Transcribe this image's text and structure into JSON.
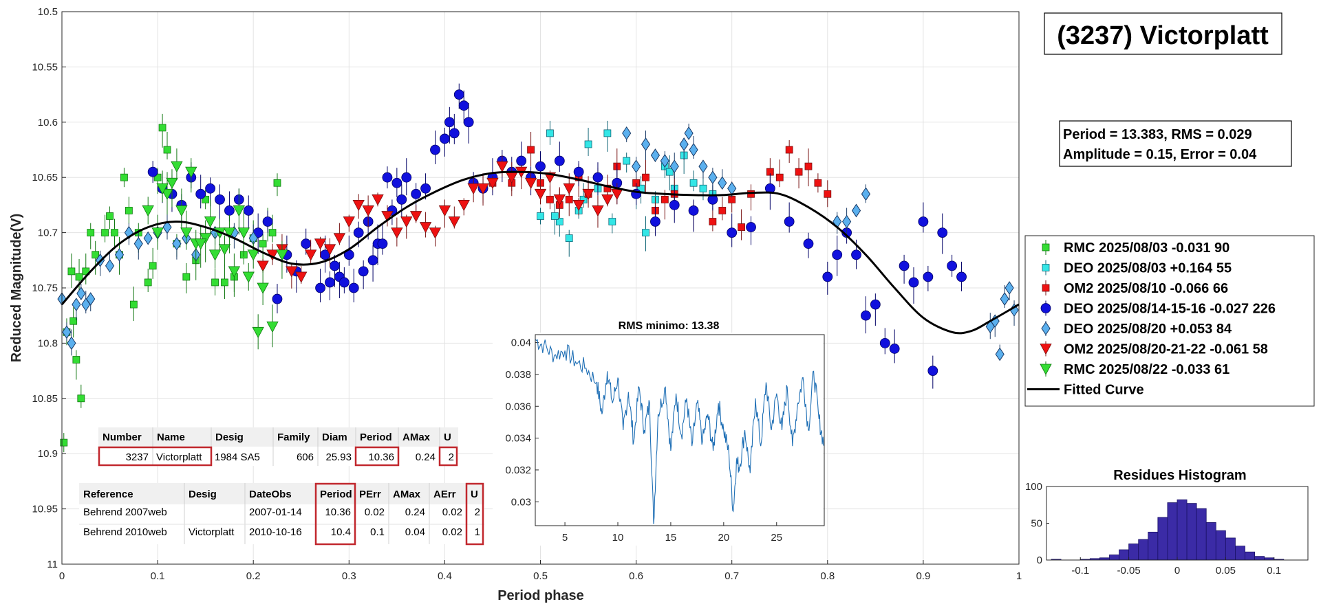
{
  "chart_data": [
    {
      "type": "scatter",
      "xlabel": "Period phase",
      "ylabel": "Reduced Magnitude(V)",
      "xlim": [
        0,
        1
      ],
      "ylim": [
        10.5,
        11
      ],
      "y_reversed": true,
      "grid": true,
      "xticks": [
        "0",
        "0.1",
        "0.2",
        "0.3",
        "0.4",
        "0.5",
        "0.6",
        "0.7",
        "0.8",
        "0.9",
        "1"
      ],
      "yticks": [
        "10.5",
        "10.55",
        "10.6",
        "10.65",
        "10.7",
        "10.75",
        "10.8",
        "10.85",
        "10.9",
        "10.95",
        "11"
      ],
      "title_box": "(3237) Victorplatt",
      "stats_line1": "Period =  13.383, RMS = 0.029",
      "stats_line2": "Amplitude = 0.15, Error = 0.04",
      "legend": [
        {
          "label": "RMC 2025/08/03   -0.031    90",
          "color": "#33dd33",
          "marker": "square"
        },
        {
          "label": "DEO 2025/08/03   +0.164    55",
          "color": "#33e6e6",
          "marker": "square"
        },
        {
          "label": "OM2 2025/08/10   -0.066    66",
          "color": "#ee1111",
          "marker": "square"
        },
        {
          "label": "DEO 2025/08/14-15-16 -0.027 226",
          "color": "#1111dd",
          "marker": "circle"
        },
        {
          "label": "DEO 2025/08/20   +0.053    84",
          "color": "#5bb0ee",
          "marker": "diamond"
        },
        {
          "label": "OM2 2025/08/20-21-22 -0.061  58",
          "color": "#ee1111",
          "marker": "triangle-down"
        },
        {
          "label": "RMC 2025/08/22   -0.033    61",
          "color": "#33dd33",
          "marker": "triangle-down"
        },
        {
          "label": "Fitted Curve",
          "color": "#000000",
          "marker": "line"
        }
      ],
      "fitted_curve": {
        "x": [
          0,
          0.03,
          0.06,
          0.09,
          0.12,
          0.15,
          0.18,
          0.21,
          0.24,
          0.27,
          0.3,
          0.33,
          0.36,
          0.39,
          0.42,
          0.45,
          0.48,
          0.51,
          0.54,
          0.57,
          0.6,
          0.63,
          0.66,
          0.69,
          0.72,
          0.75,
          0.78,
          0.81,
          0.84,
          0.87,
          0.9,
          0.93,
          0.95,
          0.97,
          1.0
        ],
        "y": [
          10.765,
          10.735,
          10.71,
          10.695,
          10.69,
          10.695,
          10.705,
          10.718,
          10.728,
          10.727,
          10.715,
          10.695,
          10.677,
          10.663,
          10.652,
          10.646,
          10.645,
          10.647,
          10.652,
          10.658,
          10.663,
          10.665,
          10.666,
          10.666,
          10.664,
          10.665,
          10.677,
          10.695,
          10.72,
          10.75,
          10.777,
          10.79,
          10.789,
          10.78,
          10.765
        ]
      },
      "series": [
        {
          "name": "RMC 2025/08/03",
          "marker": "square",
          "color": "#33dd33",
          "edge": "#117711",
          "x": [
            0.002,
            0.005,
            0.01,
            0.015,
            0.02,
            0.025,
            0.03,
            0.035,
            0.045,
            0.05,
            0.055,
            0.06,
            0.065,
            0.07,
            0.075,
            0.08,
            0.09,
            0.095,
            0.1,
            0.105,
            0.11,
            0.12,
            0.13,
            0.14,
            0.15,
            0.16,
            0.17,
            0.18,
            0.19,
            0.2,
            0.21,
            0.215,
            0.22,
            0.225,
            0.012,
            0.018
          ],
          "y": [
            10.89,
            10.79,
            10.735,
            10.815,
            10.85,
            10.735,
            10.7,
            10.72,
            10.7,
            10.685,
            10.7,
            10.72,
            10.65,
            10.68,
            10.765,
            10.7,
            10.745,
            10.73,
            10.65,
            10.605,
            10.625,
            10.71,
            10.74,
            10.725,
            10.67,
            10.745,
            10.745,
            10.74,
            10.72,
            10.705,
            10.71,
            10.69,
            10.7,
            10.655,
            10.78,
            10.74
          ]
        },
        {
          "name": "DEO 2025/08/03",
          "marker": "square",
          "color": "#33e6e6",
          "edge": "#116677",
          "x": [
            0.5,
            0.51,
            0.52,
            0.53,
            0.54,
            0.55,
            0.56,
            0.57,
            0.58,
            0.59,
            0.6,
            0.61,
            0.62,
            0.63,
            0.64,
            0.65,
            0.66,
            0.67,
            0.68,
            0.515,
            0.545,
            0.575,
            0.605,
            0.635
          ],
          "y": [
            10.685,
            10.61,
            10.69,
            10.705,
            10.68,
            10.62,
            10.66,
            10.61,
            10.655,
            10.635,
            10.665,
            10.7,
            10.67,
            10.64,
            10.66,
            10.63,
            10.655,
            10.66,
            10.665,
            10.685,
            10.67,
            10.69,
            10.66,
            10.645
          ]
        },
        {
          "name": "OM2 2025/08/10",
          "marker": "square",
          "color": "#ee1111",
          "edge": "#771111",
          "x": [
            0.45,
            0.47,
            0.49,
            0.5,
            0.51,
            0.52,
            0.53,
            0.54,
            0.55,
            0.56,
            0.57,
            0.58,
            0.6,
            0.62,
            0.64,
            0.66,
            0.68,
            0.7,
            0.72,
            0.74,
            0.75,
            0.76,
            0.77,
            0.78,
            0.79,
            0.8,
            0.61,
            0.63,
            0.69,
            0.71
          ],
          "y": [
            10.655,
            10.655,
            10.625,
            10.655,
            10.67,
            10.675,
            10.67,
            10.65,
            10.665,
            10.65,
            10.66,
            10.64,
            10.655,
            10.68,
            10.665,
            10.68,
            10.69,
            10.67,
            10.665,
            10.645,
            10.65,
            10.625,
            10.645,
            10.64,
            10.655,
            10.665,
            10.65,
            10.67,
            10.68,
            10.695
          ]
        },
        {
          "name": "DEO 2025/08/14-15-16",
          "marker": "circle",
          "color": "#1111dd",
          "edge": "#000066",
          "x": [
            0.095,
            0.105,
            0.115,
            0.125,
            0.135,
            0.145,
            0.155,
            0.165,
            0.175,
            0.185,
            0.195,
            0.205,
            0.215,
            0.225,
            0.235,
            0.245,
            0.255,
            0.27,
            0.28,
            0.29,
            0.3,
            0.31,
            0.32,
            0.33,
            0.34,
            0.35,
            0.36,
            0.37,
            0.38,
            0.39,
            0.4,
            0.405,
            0.41,
            0.415,
            0.42,
            0.425,
            0.43,
            0.44,
            0.45,
            0.46,
            0.47,
            0.48,
            0.49,
            0.5,
            0.52,
            0.54,
            0.56,
            0.58,
            0.6,
            0.62,
            0.64,
            0.66,
            0.68,
            0.7,
            0.72,
            0.74,
            0.76,
            0.78,
            0.8,
            0.81,
            0.82,
            0.83,
            0.84,
            0.85,
            0.86,
            0.87,
            0.88,
            0.89,
            0.9,
            0.905,
            0.91,
            0.92,
            0.93,
            0.94,
            0.275,
            0.285,
            0.295,
            0.305,
            0.315,
            0.325,
            0.335,
            0.345,
            0.355
          ],
          "y": [
            10.645,
            10.66,
            10.665,
            10.675,
            10.65,
            10.665,
            10.66,
            10.67,
            10.68,
            10.67,
            10.68,
            10.7,
            10.69,
            10.76,
            10.72,
            10.735,
            10.71,
            10.75,
            10.745,
            10.74,
            10.72,
            10.7,
            10.69,
            10.71,
            10.65,
            10.655,
            10.65,
            10.665,
            10.66,
            10.625,
            10.615,
            10.6,
            10.61,
            10.575,
            10.585,
            10.6,
            10.655,
            10.66,
            10.65,
            10.635,
            10.645,
            10.635,
            10.65,
            10.64,
            10.635,
            10.645,
            10.65,
            10.655,
            10.665,
            10.69,
            10.675,
            10.68,
            10.67,
            10.7,
            10.695,
            10.66,
            10.69,
            10.71,
            10.74,
            10.72,
            10.7,
            10.72,
            10.775,
            10.765,
            10.8,
            10.805,
            10.73,
            10.745,
            10.69,
            10.74,
            10.825,
            10.7,
            10.73,
            10.74,
            10.72,
            10.73,
            10.745,
            10.75,
            10.735,
            10.725,
            10.71,
            10.68,
            10.67
          ]
        },
        {
          "name": "DEO 2025/08/20",
          "marker": "diamond",
          "color": "#5bb0ee",
          "edge": "#1a3a66",
          "x": [
            0.0,
            0.005,
            0.01,
            0.015,
            0.02,
            0.025,
            0.03,
            0.04,
            0.05,
            0.06,
            0.07,
            0.08,
            0.09,
            0.1,
            0.11,
            0.12,
            0.13,
            0.14,
            0.16,
            0.18,
            0.2,
            0.59,
            0.6,
            0.61,
            0.62,
            0.63,
            0.64,
            0.65,
            0.655,
            0.66,
            0.67,
            0.68,
            0.69,
            0.7,
            0.81,
            0.82,
            0.83,
            0.84,
            0.97,
            0.975,
            0.98,
            0.985,
            0.99,
            0.995
          ],
          "y": [
            10.76,
            10.79,
            10.8,
            10.765,
            10.755,
            10.765,
            10.76,
            10.725,
            10.73,
            10.72,
            10.7,
            10.71,
            10.705,
            10.7,
            10.695,
            10.71,
            10.705,
            10.72,
            10.7,
            10.7,
            10.705,
            10.61,
            10.64,
            10.62,
            10.63,
            10.635,
            10.64,
            10.62,
            10.61,
            10.625,
            10.64,
            10.65,
            10.655,
            10.66,
            10.69,
            10.69,
            10.68,
            10.665,
            10.785,
            10.78,
            10.81,
            10.76,
            10.75,
            10.77
          ]
        },
        {
          "name": "OM2 2025/08/20-21-22",
          "marker": "triangle-down",
          "color": "#ee1111",
          "edge": "#771111",
          "x": [
            0.21,
            0.22,
            0.23,
            0.24,
            0.25,
            0.26,
            0.27,
            0.28,
            0.29,
            0.3,
            0.31,
            0.32,
            0.33,
            0.34,
            0.35,
            0.36,
            0.37,
            0.38,
            0.39,
            0.4,
            0.41,
            0.42,
            0.43,
            0.44,
            0.45,
            0.46,
            0.47,
            0.48,
            0.49,
            0.5,
            0.51,
            0.52,
            0.53,
            0.54,
            0.55,
            0.56,
            0.57,
            0.58
          ],
          "y": [
            10.73,
            10.72,
            10.715,
            10.735,
            10.74,
            10.72,
            10.71,
            10.715,
            10.705,
            10.69,
            10.675,
            10.68,
            10.67,
            10.685,
            10.7,
            10.69,
            10.685,
            10.695,
            10.7,
            10.68,
            10.69,
            10.675,
            10.66,
            10.66,
            10.655,
            10.64,
            10.65,
            10.645,
            10.655,
            10.665,
            10.65,
            10.67,
            10.66,
            10.675,
            10.665,
            10.68,
            10.67,
            10.665
          ]
        },
        {
          "name": "RMC 2025/08/22",
          "marker": "triangle-down",
          "color": "#33dd33",
          "edge": "#117711",
          "x": [
            0.09,
            0.1,
            0.11,
            0.115,
            0.12,
            0.13,
            0.14,
            0.15,
            0.16,
            0.17,
            0.18,
            0.19,
            0.2,
            0.21,
            0.22,
            0.23,
            0.105,
            0.125,
            0.135,
            0.145,
            0.155,
            0.165,
            0.175,
            0.185,
            0.195,
            0.205
          ],
          "y": [
            10.68,
            10.7,
            10.665,
            10.655,
            10.64,
            10.7,
            10.71,
            10.705,
            10.72,
            10.715,
            10.735,
            10.7,
            10.72,
            10.75,
            10.785,
            10.72,
            10.66,
            10.68,
            10.645,
            10.71,
            10.69,
            10.7,
            10.7,
            10.68,
            10.74,
            10.79
          ]
        }
      ]
    },
    {
      "type": "line",
      "title": "RMS minimo: 13.38",
      "xlim": [
        2.2,
        29.5
      ],
      "ylim": [
        0.0285,
        0.0405
      ],
      "xticks": [
        "5",
        "10",
        "15",
        "20",
        "25"
      ],
      "yticks": [
        "0.03",
        "0.032",
        "0.034",
        "0.036",
        "0.038",
        "0.04"
      ],
      "x": [
        2.2,
        3.0,
        4.0,
        5.0,
        6.0,
        7.0,
        8.0,
        8.5,
        9.0,
        9.5,
        10.0,
        10.5,
        11.0,
        11.5,
        12.0,
        12.5,
        13.0,
        13.38,
        13.8,
        14.5,
        15.0,
        15.5,
        16.0,
        16.5,
        17.0,
        17.5,
        18.0,
        18.5,
        19.0,
        19.5,
        20.0,
        20.5,
        20.9,
        21.2,
        21.5,
        22.0,
        22.5,
        23.0,
        23.5,
        24.0,
        24.5,
        25.0,
        25.5,
        26.0,
        26.5,
        27.0,
        27.5,
        28.0,
        28.5,
        29.0,
        29.5
      ],
      "y": [
        0.0402,
        0.0398,
        0.0392,
        0.0395,
        0.0388,
        0.0384,
        0.0375,
        0.0355,
        0.0382,
        0.0362,
        0.0378,
        0.0345,
        0.0369,
        0.0338,
        0.0372,
        0.0345,
        0.0362,
        0.0286,
        0.0355,
        0.0372,
        0.0332,
        0.0368,
        0.0342,
        0.0365,
        0.0335,
        0.0362,
        0.0338,
        0.0355,
        0.0332,
        0.0362,
        0.0345,
        0.033,
        0.0294,
        0.0325,
        0.0322,
        0.0345,
        0.0318,
        0.0365,
        0.0335,
        0.0375,
        0.0345,
        0.0368,
        0.0345,
        0.0372,
        0.0335,
        0.0362,
        0.0378,
        0.0345,
        0.0382,
        0.0352,
        0.0335
      ]
    },
    {
      "type": "bar",
      "title": "Residues Histogram",
      "xlim": [
        -0.135,
        0.135
      ],
      "ylim": [
        0,
        100
      ],
      "xticks": [
        "-0.1",
        "-0.05",
        "0",
        "0.05",
        "0.1"
      ],
      "yticks": [
        "0",
        "50",
        "100"
      ],
      "bin_width": 0.01,
      "categories": [
        -0.125,
        -0.115,
        -0.105,
        -0.095,
        -0.085,
        -0.075,
        -0.065,
        -0.055,
        -0.045,
        -0.035,
        -0.025,
        -0.015,
        -0.005,
        0.005,
        0.015,
        0.025,
        0.035,
        0.045,
        0.055,
        0.065,
        0.075,
        0.085,
        0.095,
        0.105,
        0.115
      ],
      "values": [
        1,
        0,
        0,
        1,
        2,
        3,
        7,
        14,
        22,
        28,
        38,
        58,
        78,
        82,
        77,
        70,
        51,
        40,
        30,
        19,
        11,
        5,
        3,
        1,
        0
      ]
    }
  ],
  "ref_table_1": {
    "headers": [
      "Number",
      "Name",
      "Desig",
      "Family",
      "Diam",
      "Period",
      "AMax",
      "U"
    ],
    "row": [
      "3237",
      "Victorplatt",
      "1984 SA5",
      "606",
      "25.93",
      "10.36",
      "0.24",
      "2"
    ]
  },
  "ref_table_2": {
    "headers": [
      "Reference",
      "Desig",
      "DateObs",
      "Period",
      "PErr",
      "AMax",
      "AErr",
      "U"
    ],
    "rows": [
      [
        "Behrend 2007web",
        "",
        "2007-01-14",
        "10.36",
        "0.02",
        "0.24",
        "0.02",
        "2"
      ],
      [
        "Behrend 2010web",
        "Victorplatt",
        "2010-10-16",
        "10.4",
        "0.1",
        "0.04",
        "0.02",
        "1"
      ]
    ]
  }
}
